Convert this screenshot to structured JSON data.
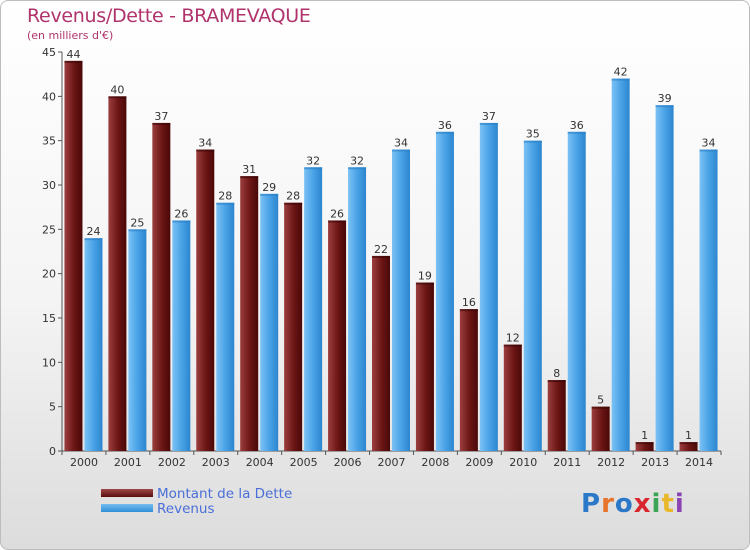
{
  "title": "Revenus/Dette - BRAMEVAQUE",
  "subtitle": "(en milliers d'€)",
  "colors": {
    "debt": "#6b1515",
    "revenue": "#4aa3e6",
    "title": "#b0336b",
    "legend_text": "#4a6fd8"
  },
  "chart_data": {
    "type": "bar",
    "categories": [
      "2000",
      "2001",
      "2002",
      "2003",
      "2004",
      "2005",
      "2006",
      "2007",
      "2008",
      "2009",
      "2010",
      "2011",
      "2012",
      "2013",
      "2014"
    ],
    "series": [
      {
        "name": "Montant de la Dette",
        "values": [
          44,
          40,
          37,
          34,
          31,
          28,
          26,
          22,
          19,
          16,
          12,
          8,
          5,
          1,
          1
        ]
      },
      {
        "name": "Revenus",
        "values": [
          24,
          25,
          26,
          28,
          29,
          32,
          32,
          34,
          36,
          37,
          35,
          36,
          42,
          39,
          34
        ]
      }
    ],
    "ylim": [
      0,
      45
    ],
    "yticks": [
      0,
      5,
      10,
      15,
      20,
      25,
      30,
      35,
      40,
      45
    ],
    "grid": false,
    "legend_position": "bottom-left"
  },
  "logo": {
    "text": "Proxiti",
    "letters": [
      "P",
      "r",
      "o",
      "x",
      "i",
      "t",
      "i"
    ],
    "letter_colors": [
      "#2b78c9",
      "#e8732a",
      "#2b78c9",
      "#d9262c",
      "#3aa655",
      "#e8b82a",
      "#8c44b3"
    ]
  }
}
